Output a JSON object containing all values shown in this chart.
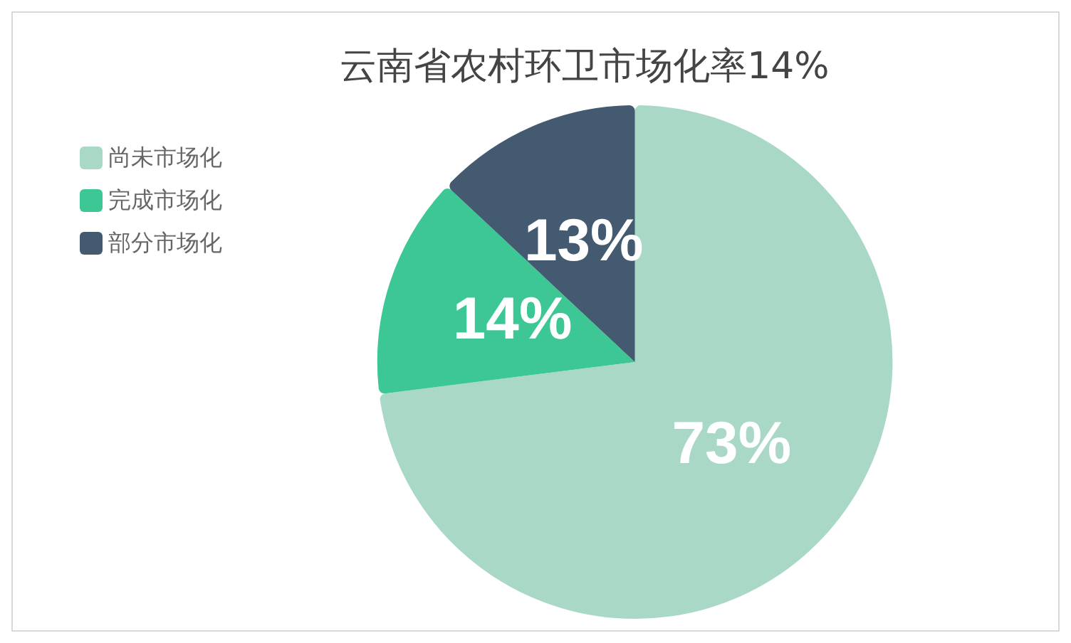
{
  "chart_data": {
    "type": "pie",
    "title": "云南省农村环卫市场化率14%",
    "categories": [
      "尚未市场化",
      "完成市场化",
      "部分市场化"
    ],
    "values": [
      73,
      14,
      13
    ],
    "value_labels": [
      "73%",
      "14%",
      "13%"
    ],
    "colors": [
      "#a9d9c6",
      "#3cc795",
      "#435a70"
    ],
    "legend": "top left"
  }
}
